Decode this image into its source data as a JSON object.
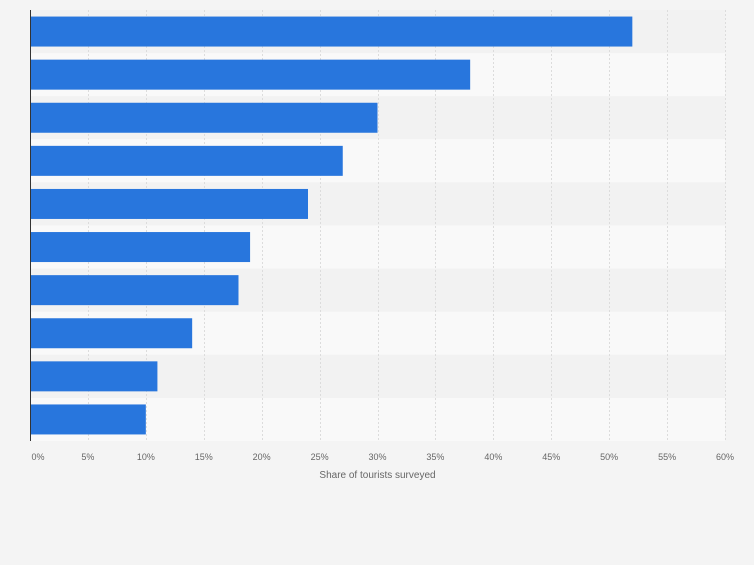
{
  "chart_data": {
    "type": "bar",
    "orientation": "horizontal",
    "categories": [
      "",
      "",
      "",
      "",
      "",
      "",
      "",
      "",
      "",
      ""
    ],
    "values": [
      52,
      38,
      30,
      27,
      24,
      19,
      18,
      14,
      11,
      10
    ],
    "title": "",
    "xlabel": "Share of tourists surveyed",
    "ylabel": "",
    "xlim": [
      0,
      60
    ],
    "ticks": [
      0,
      5,
      10,
      15,
      20,
      25,
      30,
      35,
      40,
      45,
      50,
      55,
      60
    ],
    "tick_labels": [
      "0%",
      "5%",
      "10%",
      "15%",
      "20%",
      "25%",
      "30%",
      "35%",
      "40%",
      "45%",
      "50%",
      "55%",
      "60%"
    ],
    "grid": true,
    "bar_color": "#2876dd",
    "band_colors": [
      "#f2f2f2",
      "#f9f9f9"
    ]
  }
}
